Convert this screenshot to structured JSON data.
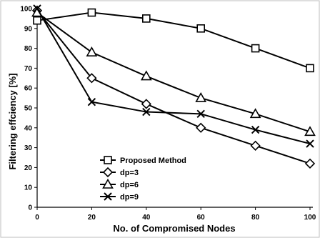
{
  "chart_data": {
    "type": "line",
    "title": "",
    "xlabel": "No. of Compromised Nodes",
    "ylabel": "Filtering effciency [%]",
    "x": [
      0,
      20,
      40,
      60,
      80,
      100
    ],
    "xlim": [
      0,
      100
    ],
    "ylim": [
      0,
      100
    ],
    "x_ticks": [
      "0",
      "20",
      "40",
      "60",
      "80",
      "100"
    ],
    "y_ticks": [
      "0",
      "10",
      "20",
      "30",
      "40",
      "50",
      "60",
      "70",
      "80",
      "90",
      "100"
    ],
    "grid": false,
    "legend_position": "bottom-left",
    "series": [
      {
        "name": "Proposed Method",
        "marker": "square",
        "values": [
          94,
          98,
          95,
          90,
          80,
          70
        ]
      },
      {
        "name": "dp=3",
        "marker": "diamond",
        "values": [
          99,
          65,
          52,
          40,
          31,
          22
        ]
      },
      {
        "name": "dp=6",
        "marker": "triangle",
        "values": [
          98,
          78,
          66,
          55,
          47,
          38
        ]
      },
      {
        "name": "dp=9",
        "marker": "x",
        "values": [
          100,
          53,
          48,
          47,
          39,
          32
        ]
      }
    ],
    "line_color": "#000000"
  }
}
